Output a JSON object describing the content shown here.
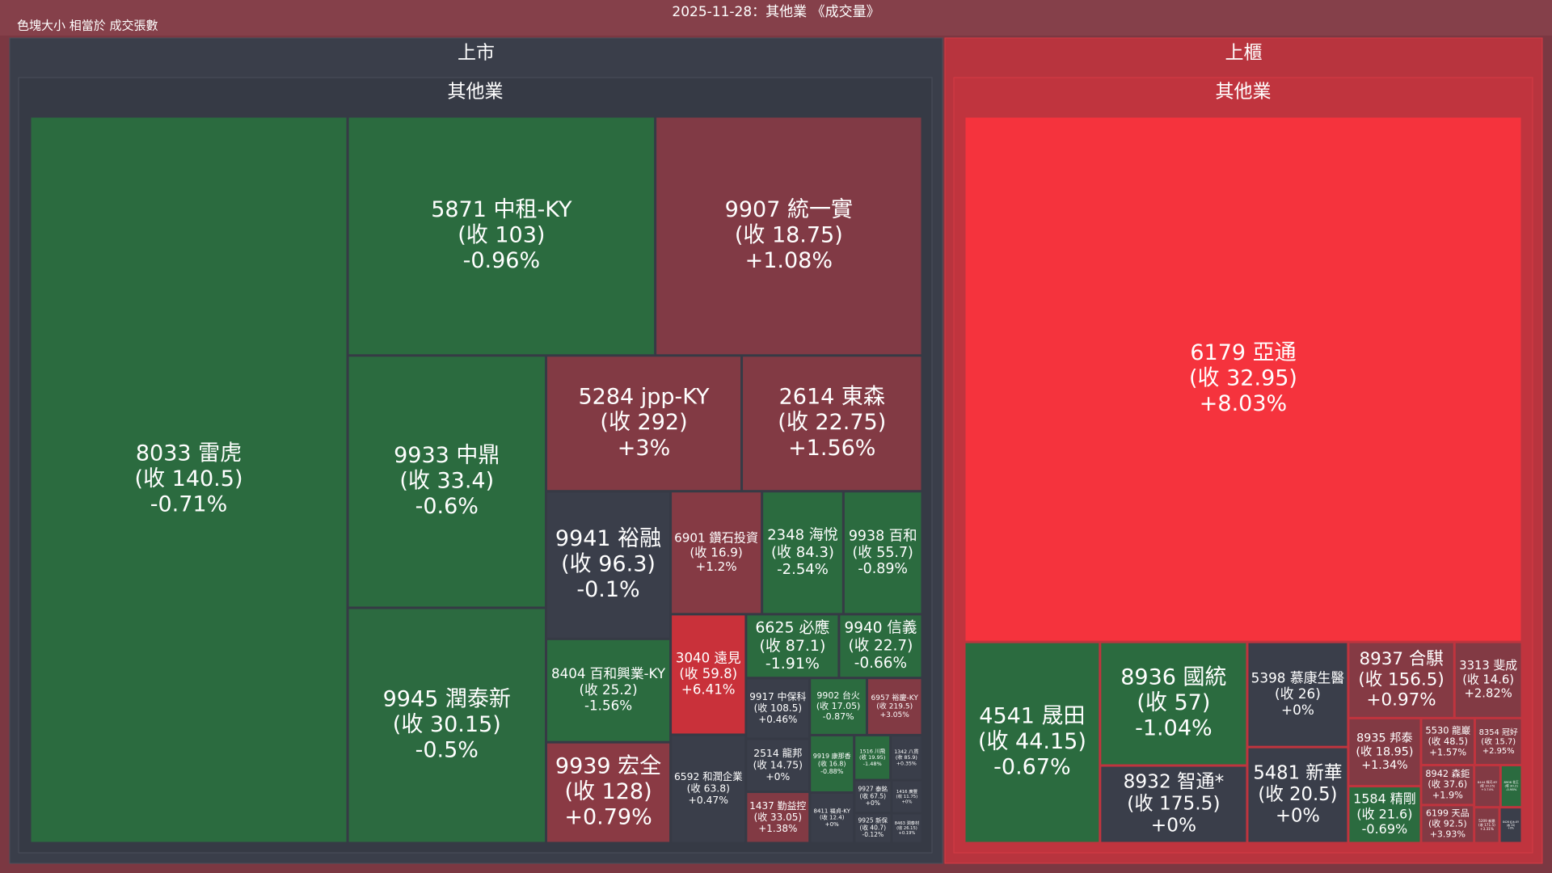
{
  "header": {
    "title": "2025-11-28：其他業 《成交量》",
    "note": "色塊大小 相當於 成交張數"
  },
  "chart_data": {
    "type": "treemap",
    "groups": [
      {
        "market": "上市",
        "sector": "其他業",
        "fill": "#3a3e4a",
        "tiles": [
          {
            "label": "8033 雷虎",
            "close_label": "(收 140.5)",
            "change_label": "-0.71%",
            "value": 226,
            "color": "#2b6b3f"
          },
          {
            "label": "5871 中租-KY",
            "close_label": "(收 103)",
            "change_label": "-0.96%",
            "value": 72,
            "color": "#2b6b3f"
          },
          {
            "label": "9907 統一實",
            "close_label": "(收 18.75)",
            "change_label": "+1.08%",
            "value": 62.5,
            "color": "#813a45"
          },
          {
            "label": "9933 中鼎",
            "close_label": "(收 33.4)",
            "change_label": "-0.6%",
            "value": 49,
            "color": "#2b6b3f"
          },
          {
            "label": "9945 潤泰新",
            "close_label": "(收 30.15)",
            "change_label": "-0.5%",
            "value": 45.7,
            "color": "#2c6a40"
          },
          {
            "label": "5284 jpp-KY",
            "close_label": "(收 292)",
            "change_label": "+3%",
            "value": 26,
            "color": "#823a44"
          },
          {
            "label": "2614 東森",
            "close_label": "(收 22.75)",
            "change_label": "+1.56%",
            "value": 24,
            "color": "#823a44"
          },
          {
            "label": "9941 裕融",
            "close_label": "(收 96.3)",
            "change_label": "-0.1%",
            "value": 18,
            "color": "#3a3e4a"
          },
          {
            "label": "8404 百和興業-KY",
            "close_label": "(收 25.2)",
            "change_label": "-1.56%",
            "value": 12.6,
            "color": "#2b6b3f"
          },
          {
            "label": "9939 宏全",
            "close_label": "(收 128)",
            "change_label": "+0.79%",
            "value": 12.3,
            "color": "#8a3a44"
          },
          {
            "label": "6901 鑽石投資",
            "close_label": "(收 16.9)",
            "change_label": "+1.2%",
            "value": 11,
            "color": "#853a44"
          },
          {
            "label": "2348 海悅",
            "close_label": "(收 84.3)",
            "change_label": "-2.54%",
            "value": 9.8,
            "color": "#2b6b3f"
          },
          {
            "label": "9938 百和",
            "close_label": "(收 55.7)",
            "change_label": "-0.89%",
            "value": 9.5,
            "color": "#2b6b3f"
          },
          {
            "label": "3040 遠見",
            "close_label": "(收 59.8)",
            "change_label": "+6.41%",
            "value": 8.9,
            "color": "#c9313a"
          },
          {
            "label": "6592 和潤企業",
            "close_label": "(收 63.8)",
            "change_label": "+0.47%",
            "value": 8,
            "color": "#3a3e4a"
          },
          {
            "label": "6625 必應",
            "close_label": "(收 87.1)",
            "change_label": "-1.91%",
            "value": 5.8,
            "color": "#2b6b3f"
          },
          {
            "label": "9940 信義",
            "close_label": "(收 22.7)",
            "change_label": "-0.66%",
            "value": 5.2,
            "color": "#2b6b3f"
          },
          {
            "label": "9917 中保科",
            "close_label": "(收 108.5)",
            "change_label": "+0.46%",
            "value": 3.8,
            "color": "#3a3e4a"
          },
          {
            "label": "2514 龍邦",
            "close_label": "(收 14.75)",
            "change_label": "+0%",
            "value": 3.3,
            "color": "#3a3e4a"
          },
          {
            "label": "1437 勤益控",
            "close_label": "(收 33.05)",
            "change_label": "+1.38%",
            "value": 3.2,
            "color": "#823a44"
          },
          {
            "label": "9902 台火",
            "close_label": "(收 17.05)",
            "change_label": "-0.87%",
            "value": 3.2,
            "color": "#2b6b3f"
          },
          {
            "label": "6957 裕慶-KY",
            "close_label": "(收 219.5)",
            "change_label": "+3.05%",
            "value": 3.1,
            "color": "#823a44"
          },
          {
            "label": "9919 康那香",
            "close_label": "(收 16.8)",
            "change_label": "-0.88%",
            "value": 2.5,
            "color": "#2b6b3f"
          },
          {
            "label": "8411 福貞-KY",
            "close_label": "(收 12.4)",
            "change_label": "+0%",
            "value": 2.2,
            "color": "#3a3e4a"
          },
          {
            "label": "1516 川飛",
            "close_label": "(收 19.95)",
            "change_label": "-1.48%",
            "value": 1.6,
            "color": "#2b6b3f"
          },
          {
            "label": "1342 八貫",
            "close_label": "(收 85.9)",
            "change_label": "+0.35%",
            "value": 1.4,
            "color": "#3a3e4a"
          },
          {
            "label": "9927 泰銘",
            "close_label": "(收 67.5)",
            "change_label": "+0%",
            "value": 1.2,
            "color": "#3a3e4a"
          },
          {
            "label": "9925 新保",
            "close_label": "(收 40.7)",
            "change_label": "-0.12%",
            "value": 1.1,
            "color": "#3a3e4a"
          },
          {
            "label": "1416 廣豐",
            "close_label": "(收 11.75)",
            "change_label": "+0%",
            "value": 1,
            "color": "#3a3e4a"
          },
          {
            "label": "8463 潤泰材",
            "close_label": "(收 26.15)",
            "change_label": "+0.19%",
            "value": 0.9,
            "color": "#3a3e4a"
          }
        ]
      },
      {
        "market": "上櫃",
        "sector": "其他業",
        "fill": "#b8343e",
        "tiles": [
          {
            "label": "6179 亞通",
            "close_label": "(收 32.95)",
            "change_label": "+8.03%",
            "value": 290,
            "color": "#f5333d"
          },
          {
            "label": "4541 晟田",
            "close_label": "(收 44.15)",
            "change_label": "-0.67%",
            "value": 27,
            "color": "#2b6b3f"
          },
          {
            "label": "8936 國統",
            "close_label": "(收 57)",
            "change_label": "-1.04%",
            "value": 18,
            "color": "#2b6b3f"
          },
          {
            "label": "8932 智通*",
            "close_label": "(收 175.5)",
            "change_label": "+0%",
            "value": 11.3,
            "color": "#3a3e4a"
          },
          {
            "label": "5398 慕康生醫",
            "close_label": "(收 26)",
            "change_label": "+0%",
            "value": 10.5,
            "color": "#3a3e4a"
          },
          {
            "label": "5481 新華",
            "close_label": "(收 20.5)",
            "change_label": "+0%",
            "value": 9.6,
            "color": "#3a3e4a"
          },
          {
            "label": "8937 合騏",
            "close_label": "(收 156.5)",
            "change_label": "+0.97%",
            "value": 8,
            "color": "#853a44"
          },
          {
            "label": "3313 斐成",
            "close_label": "(收 14.6)",
            "change_label": "+2.82%",
            "value": 5.1,
            "color": "#823a44"
          },
          {
            "label": "8935 邦泰",
            "close_label": "(收 18.95)",
            "change_label": "+1.34%",
            "value": 4.9,
            "color": "#823a44"
          },
          {
            "label": "1584 精剛",
            "close_label": "(收 21.6)",
            "change_label": "-0.69%",
            "value": 4.1,
            "color": "#2b6b3f"
          },
          {
            "label": "5530 龍巖",
            "close_label": "(收 48.5)",
            "change_label": "+1.57%",
            "value": 2.5,
            "color": "#823a44"
          },
          {
            "label": "8354 冠好",
            "close_label": "(收 15.7)",
            "change_label": "+2.95%",
            "value": 2.2,
            "color": "#823a44"
          },
          {
            "label": "8942 森鉅",
            "close_label": "(收 37.6)",
            "change_label": "+1.9%",
            "value": 2.1,
            "color": "#823a44"
          },
          {
            "label": "6199 天品",
            "close_label": "(收 92.5)",
            "change_label": "+3.93%",
            "value": 2,
            "color": "#823a44"
          },
          {
            "label": "8444 綠河-KY",
            "close_label": "(收 10.25)",
            "change_label": "+3.74%",
            "value": 1.1,
            "color": "#823a44"
          },
          {
            "label": "8906 花王",
            "close_label": "(收 30.2)",
            "change_label": "-0.98%",
            "value": 0.9,
            "color": "#2b6b3f"
          },
          {
            "label": "5209 新鼎",
            "close_label": "(收 171.5)",
            "change_label": "+3.31%",
            "value": 0.9,
            "color": "#823a44"
          },
          {
            "label": "8426 紅木-KY",
            "close_label": "(收 24)",
            "change_label": "+0%",
            "value": 0.8,
            "color": "#3a3e4a"
          }
        ]
      }
    ]
  }
}
